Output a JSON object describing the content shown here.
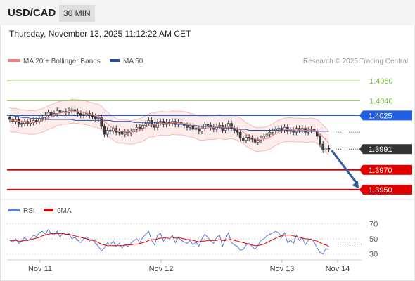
{
  "header": {
    "symbol": "USD/CAD",
    "timeframe": "30 MIN",
    "datetime": "Thursday, November 13, 2025 11:12:22 AM CET"
  },
  "legend": {
    "bb_label": "MA 20 + Bollinger Bands",
    "ma50_label": "MA 50",
    "credit": "Research © 2025 Trading Central"
  },
  "colors": {
    "bb": "#f08080",
    "ma50": "#2a4fa0",
    "resistance": "#7bbf3a",
    "pivot": "#1f5fe0",
    "support": "#e00000",
    "current": "#333333",
    "arrow": "#2f5f9f",
    "rsi": "#5b7fd6",
    "rsi_ma": "#e00000"
  },
  "chart_data": [
    {
      "type": "candlestick",
      "title": "",
      "ylim": [
        1.394,
        1.4075
      ],
      "x_ticks": [
        "Nov 11",
        "Nov 12",
        "Nov 13",
        "Nov 14"
      ],
      "levels": [
        {
          "value": 1.406,
          "label": "1.4060",
          "kind": "resistance"
        },
        {
          "value": 1.404,
          "label": "1.4040",
          "kind": "resistance"
        },
        {
          "value": 1.4025,
          "label": "1.4025",
          "kind": "pivot"
        },
        {
          "value": 1.3991,
          "label": "1.3991",
          "kind": "current"
        },
        {
          "value": 1.397,
          "label": "1.3970",
          "kind": "support"
        },
        {
          "value": 1.395,
          "label": "1.3950",
          "kind": "support"
        }
      ],
      "close": [
        1.4021,
        1.4019,
        1.4021,
        1.4016,
        1.4017,
        1.4019,
        1.4017,
        1.4018,
        1.402,
        1.4019,
        1.4022,
        1.4023,
        1.4025,
        1.4028,
        1.4026,
        1.4027,
        1.403,
        1.4028,
        1.4029,
        1.4028,
        1.403,
        1.4031,
        1.4029,
        1.4027,
        1.4025,
        1.4026,
        1.4027,
        1.4025,
        1.4024,
        1.4022,
        1.4023,
        1.4014,
        1.4006,
        1.401,
        1.4009,
        1.4012,
        1.4008,
        1.4009,
        1.4006,
        1.4008,
        1.4007,
        1.4009,
        1.4011,
        1.4013,
        1.4012,
        1.4015,
        1.4017,
        1.402,
        1.4016,
        1.4013,
        1.4018,
        1.4019,
        1.4016,
        1.4018,
        1.4017,
        1.4019,
        1.4016,
        1.4018,
        1.4016,
        1.4015,
        1.4013,
        1.4014,
        1.4011,
        1.4012,
        1.4009,
        1.4012,
        1.4016,
        1.4015,
        1.4013,
        1.4011,
        1.4014,
        1.4015,
        1.401,
        1.4013,
        1.4017,
        1.4012,
        1.401,
        1.4008,
        1.4002,
        1.4,
        1.4003,
        1.4002,
        1.4001,
        1.3998,
        1.4,
        1.4002,
        1.4004,
        1.4006,
        1.4008,
        1.4009,
        1.4011,
        1.4012,
        1.401,
        1.4013,
        1.4009,
        1.401,
        1.4008,
        1.4012,
        1.401,
        1.4012,
        1.4008,
        1.401,
        1.4011,
        1.4009,
        1.4004,
        1.3996,
        1.399,
        1.3992,
        1.3991
      ],
      "ma50": [
        1.4025,
        1.4025,
        1.4024,
        1.4024,
        1.4023,
        1.4023,
        1.4023,
        1.4022,
        1.4022,
        1.4022,
        1.4022,
        1.4021,
        1.4021,
        1.4021,
        1.4021,
        1.4021,
        1.4021,
        1.4021,
        1.4021,
        1.4021,
        1.4021,
        1.4021,
        1.402,
        1.402,
        1.402,
        1.402,
        1.402,
        1.402,
        1.402,
        1.402,
        1.402,
        1.402,
        1.402,
        1.402,
        1.402,
        1.4019,
        1.4019,
        1.4019,
        1.4019,
        1.4019,
        1.4019,
        1.4019,
        1.4018,
        1.4018,
        1.4018,
        1.4018,
        1.4018,
        1.4018,
        1.4018,
        1.4018,
        1.4017,
        1.4017,
        1.4017,
        1.4017,
        1.4017,
        1.4017,
        1.4016,
        1.4016,
        1.4016,
        1.4016,
        1.4015,
        1.4015,
        1.4015,
        1.4015,
        1.4014,
        1.4014,
        1.4014,
        1.4014,
        1.4013,
        1.4013,
        1.4013,
        1.4013,
        1.4012,
        1.4012,
        1.4012,
        1.4012,
        1.4012,
        1.4011,
        1.4011,
        1.4011,
        1.4011,
        1.401,
        1.401,
        1.401,
        1.401,
        1.401,
        1.401,
        1.401,
        1.401,
        1.401,
        1.401,
        1.401,
        1.401,
        1.401,
        1.401,
        1.4009,
        1.4009,
        1.4009,
        1.4009,
        1.4009,
        1.4009,
        1.4009,
        1.4009,
        1.4009,
        1.4009,
        1.4009,
        1.4009,
        1.4009,
        1.4009
      ],
      "bb_upper_offset": 0.0012,
      "projection": {
        "from": 1.3991,
        "to": 1.395,
        "direction": "down"
      }
    },
    {
      "type": "line",
      "title": "",
      "series": [
        {
          "name": "RSI",
          "values": [
            48,
            46,
            50,
            44,
            47,
            52,
            48,
            50,
            55,
            53,
            58,
            60,
            56,
            62,
            57,
            55,
            60,
            52,
            58,
            55,
            57,
            50,
            52,
            48,
            45,
            50,
            53,
            47,
            49,
            44,
            40,
            34,
            38,
            45,
            42,
            47,
            40,
            44,
            38,
            42,
            40,
            44,
            48,
            50,
            45,
            52,
            56,
            60,
            48,
            42,
            55,
            57,
            47,
            52,
            50,
            55,
            45,
            52,
            48,
            46,
            44,
            48,
            42,
            46,
            40,
            50,
            56,
            52,
            47,
            44,
            52,
            55,
            40,
            50,
            58,
            45,
            42,
            40,
            35,
            36,
            42,
            44,
            40,
            36,
            42,
            48,
            50,
            54,
            56,
            58,
            60,
            58,
            52,
            58,
            45,
            48,
            44,
            55,
            48,
            52,
            42,
            48,
            50,
            46,
            38,
            32,
            30,
            37,
            36
          ]
        },
        {
          "name": "9MA",
          "values": [
            48,
            48,
            48,
            47,
            47,
            48,
            48,
            49,
            50,
            51,
            52,
            54,
            55,
            56,
            57,
            57,
            57,
            57,
            57,
            56,
            56,
            55,
            54,
            53,
            52,
            51,
            50,
            49,
            48,
            47,
            45,
            43,
            42,
            41,
            41,
            41,
            41,
            41,
            41,
            42,
            42,
            42,
            43,
            43,
            44,
            45,
            46,
            48,
            49,
            49,
            50,
            51,
            51,
            52,
            52,
            52,
            51,
            51,
            51,
            50,
            49,
            49,
            48,
            47,
            46,
            47,
            47,
            48,
            48,
            48,
            48,
            49,
            48,
            48,
            49,
            49,
            48,
            47,
            46,
            45,
            44,
            43,
            42,
            41,
            41,
            42,
            43,
            45,
            47,
            49,
            51,
            53,
            54,
            55,
            55,
            55,
            54,
            53,
            52,
            51,
            50,
            50,
            49,
            48,
            47,
            45,
            43,
            42,
            40
          ]
        }
      ],
      "y_ticks": [
        70,
        50,
        30
      ],
      "ylim": [
        25,
        75
      ]
    }
  ]
}
